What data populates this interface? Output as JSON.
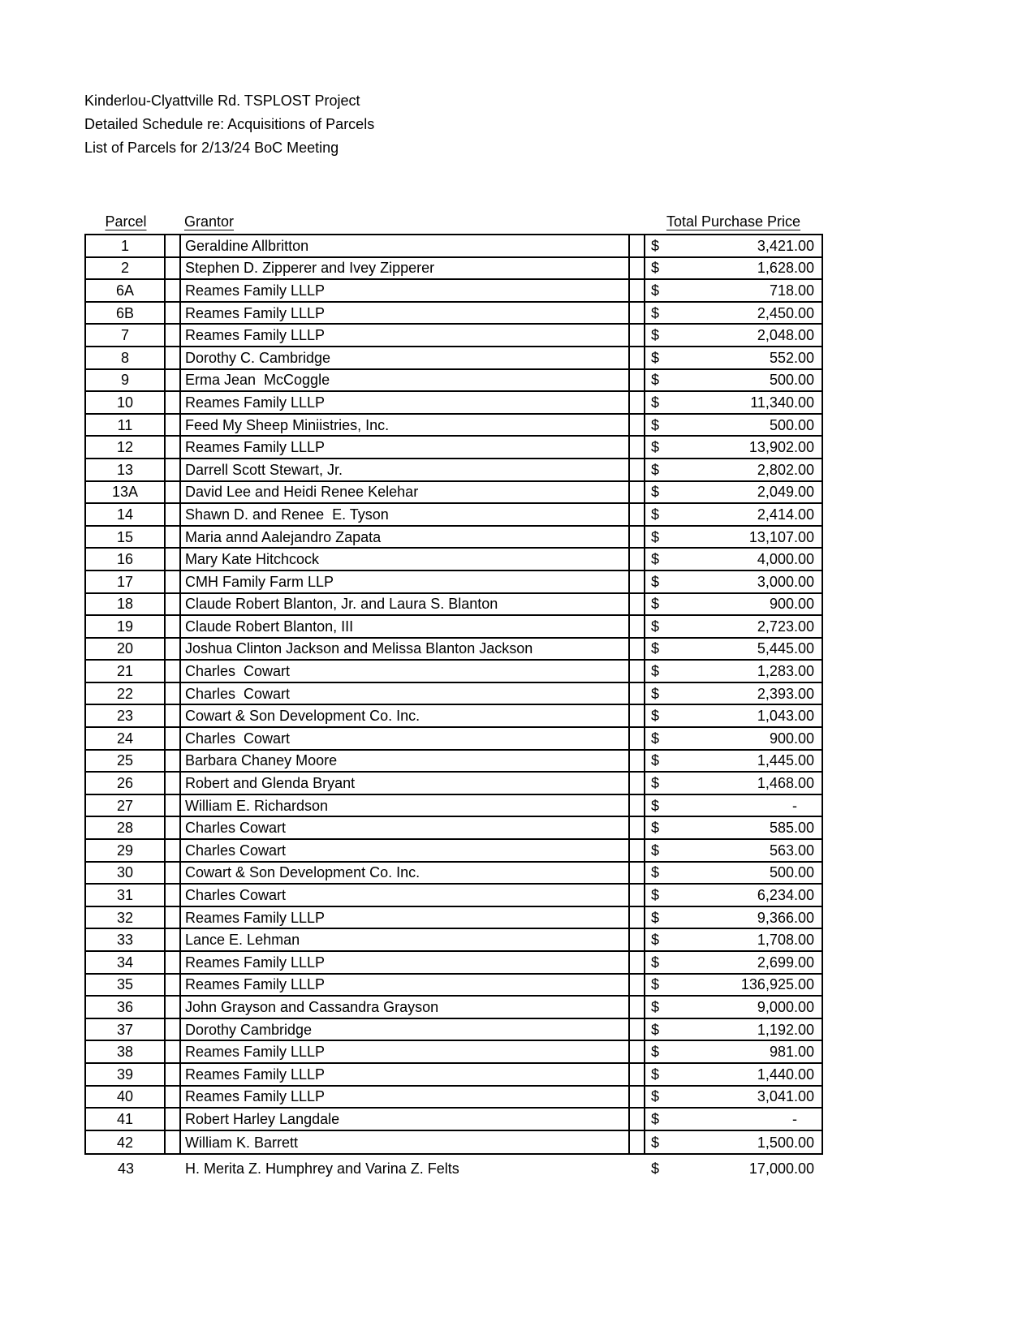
{
  "document": {
    "titles": [
      "Kinderlou-Clyattville Rd. TSPLOST Project",
      "Detailed Schedule re: Acquisitions of Parcels",
      "List of Parcels for 2/13/24 BoC Meeting"
    ]
  },
  "table": {
    "headers": {
      "parcel": "Parcel",
      "grantor": "Grantor",
      "price": "Total Purchase Price"
    },
    "currency_symbol": "$",
    "empty_value": "-",
    "rows": [
      {
        "parcel": "1",
        "grantor": "Geraldine Allbritton",
        "amount": "3,421.00"
      },
      {
        "parcel": "2",
        "grantor": "Stephen D. Zipperer and Ivey Zipperer",
        "amount": "1,628.00"
      },
      {
        "parcel": "6A",
        "grantor": "Reames Family LLLP",
        "amount": "718.00"
      },
      {
        "parcel": "6B",
        "grantor": "Reames Family LLLP",
        "amount": "2,450.00"
      },
      {
        "parcel": "7",
        "grantor": "Reames Family LLLP",
        "amount": "2,048.00"
      },
      {
        "parcel": "8",
        "grantor": "Dorothy C. Cambridge",
        "amount": "552.00"
      },
      {
        "parcel": "9",
        "grantor": "Erma Jean  McCoggle",
        "amount": "500.00"
      },
      {
        "parcel": "10",
        "grantor": "Reames Family LLLP",
        "amount": "11,340.00"
      },
      {
        "parcel": "11",
        "grantor": "Feed My Sheep Miniistries, Inc.",
        "amount": "500.00"
      },
      {
        "parcel": "12",
        "grantor": "Reames Family LLLP",
        "amount": "13,902.00"
      },
      {
        "parcel": "13",
        "grantor": "Darrell Scott Stewart, Jr.",
        "amount": "2,802.00"
      },
      {
        "parcel": "13A",
        "grantor": "David Lee and Heidi Renee Kelehar",
        "amount": "2,049.00"
      },
      {
        "parcel": "14",
        "grantor": "Shawn D. and Renee  E. Tyson",
        "amount": "2,414.00"
      },
      {
        "parcel": "15",
        "grantor": "Maria annd Aalejandro Zapata",
        "amount": "13,107.00"
      },
      {
        "parcel": "16",
        "grantor": "Mary Kate Hitchcock",
        "amount": "4,000.00"
      },
      {
        "parcel": "17",
        "grantor": "CMH Family Farm LLP",
        "amount": "3,000.00"
      },
      {
        "parcel": "18",
        "grantor": "Claude Robert Blanton, Jr. and Laura S. Blanton",
        "amount": "900.00"
      },
      {
        "parcel": "19",
        "grantor": "Claude Robert Blanton, III",
        "amount": "2,723.00"
      },
      {
        "parcel": "20",
        "grantor": "Joshua Clinton Jackson and Melissa Blanton Jackson",
        "amount": "5,445.00"
      },
      {
        "parcel": "21",
        "grantor": "Charles  Cowart",
        "amount": "1,283.00"
      },
      {
        "parcel": "22",
        "grantor": "Charles  Cowart",
        "amount": "2,393.00"
      },
      {
        "parcel": "23",
        "grantor": "Cowart & Son Development Co. Inc.",
        "amount": "1,043.00"
      },
      {
        "parcel": "24",
        "grantor": "Charles  Cowart",
        "amount": "900.00"
      },
      {
        "parcel": "25",
        "grantor": "Barbara Chaney Moore",
        "amount": "1,445.00"
      },
      {
        "parcel": "26",
        "grantor": "Robert and Glenda Bryant",
        "amount": "1,468.00"
      },
      {
        "parcel": "27",
        "grantor": "William E. Richardson",
        "amount": "-"
      },
      {
        "parcel": "28",
        "grantor": "Charles Cowart",
        "amount": "585.00"
      },
      {
        "parcel": "29",
        "grantor": "Charles Cowart",
        "amount": "563.00"
      },
      {
        "parcel": "30",
        "grantor": "Cowart & Son Development Co. Inc.",
        "amount": "500.00"
      },
      {
        "parcel": "31",
        "grantor": "Charles Cowart",
        "amount": "6,234.00"
      },
      {
        "parcel": "32",
        "grantor": "Reames Family LLLP",
        "amount": "9,366.00"
      },
      {
        "parcel": "33",
        "grantor": "Lance E. Lehman",
        "amount": "1,708.00"
      },
      {
        "parcel": "34",
        "grantor": "Reames Family LLLP",
        "amount": "2,699.00"
      },
      {
        "parcel": "35",
        "grantor": "Reames Family LLLP",
        "amount": "136,925.00"
      },
      {
        "parcel": "36",
        "grantor": "John Grayson and Cassandra Grayson",
        "amount": "9,000.00"
      },
      {
        "parcel": "37",
        "grantor": "Dorothy Cambridge",
        "amount": "1,192.00"
      },
      {
        "parcel": "38",
        "grantor": "Reames Family LLLP",
        "amount": "981.00"
      },
      {
        "parcel": "39",
        "grantor": "Reames Family LLLP",
        "amount": "1,440.00"
      },
      {
        "parcel": "40",
        "grantor": "Reames Family LLLP",
        "amount": "3,041.00"
      },
      {
        "parcel": "41",
        "grantor": "Robert Harley Langdale",
        "amount": "-"
      },
      {
        "parcel": "42",
        "grantor": "William K. Barrett",
        "amount": "1,500.00"
      }
    ],
    "footer_row": {
      "parcel": "43",
      "grantor": "H. Merita Z. Humphrey and Varina Z. Felts",
      "amount": "17,000.00"
    }
  }
}
